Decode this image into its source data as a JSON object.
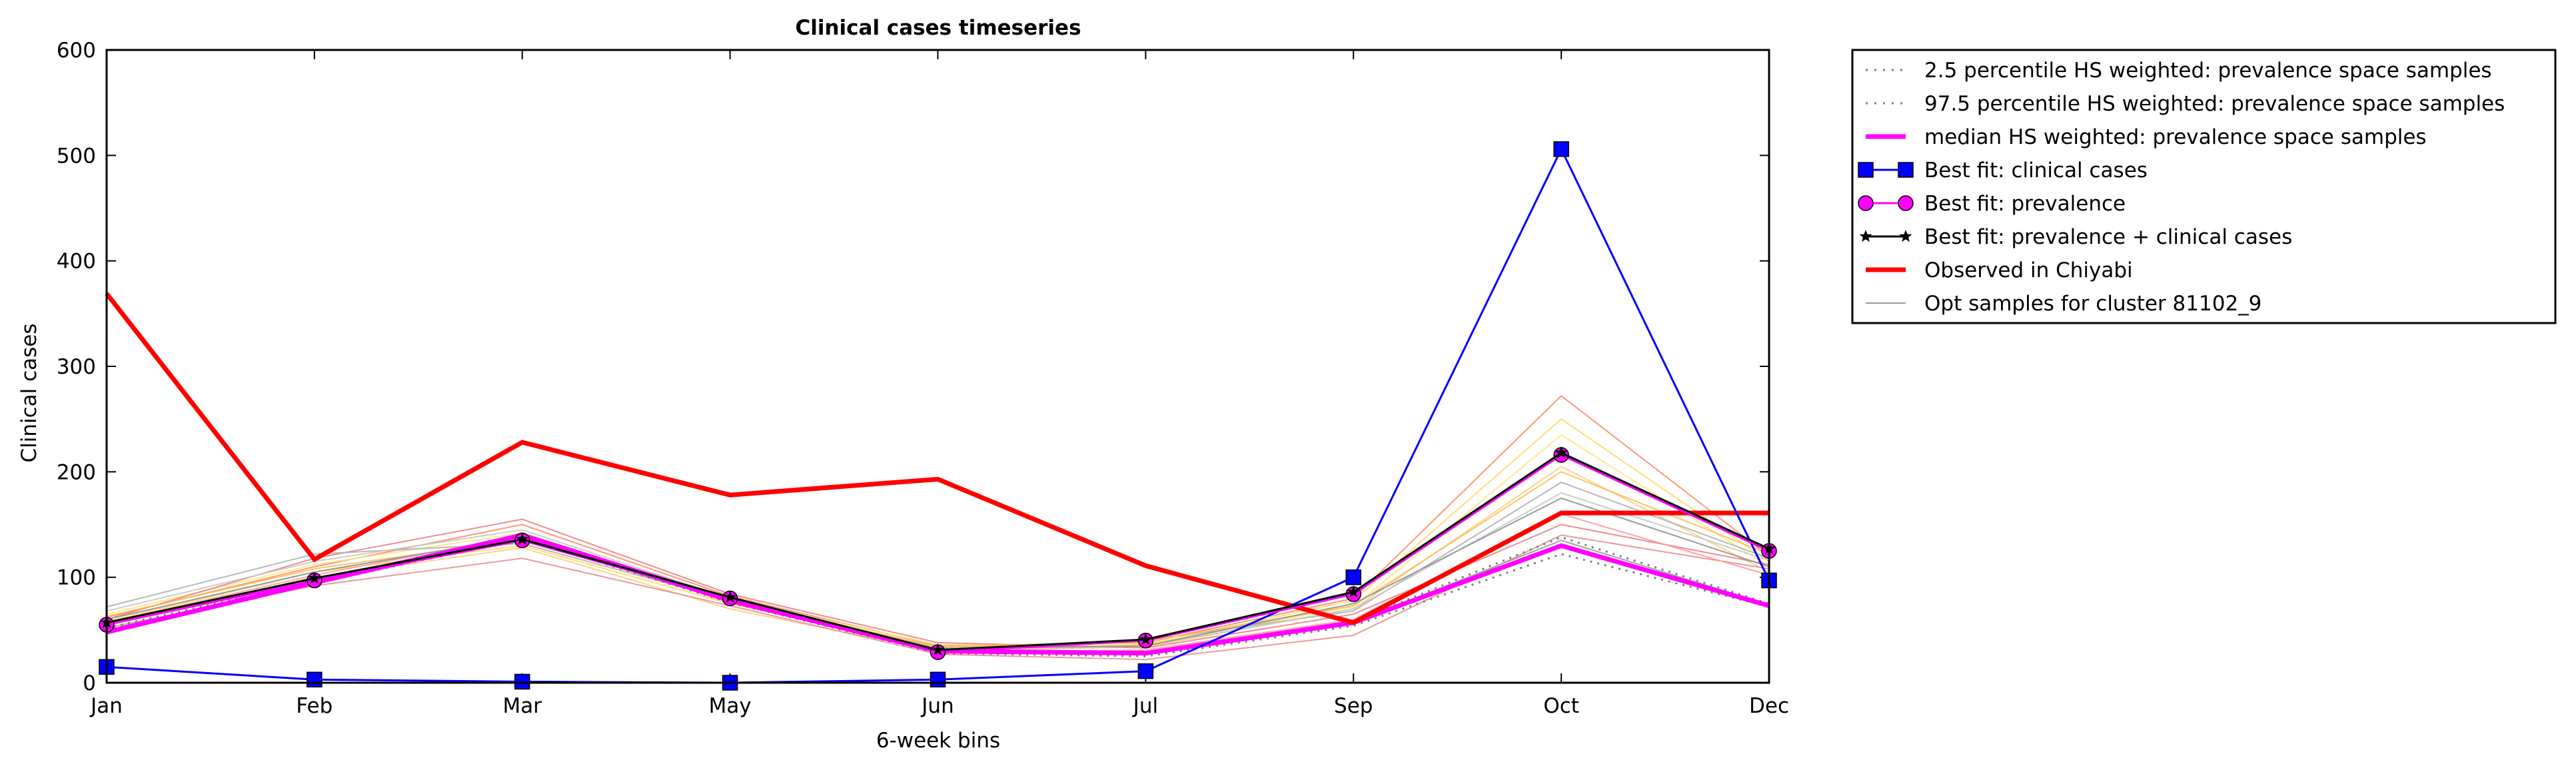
{
  "chart_data": {
    "type": "line",
    "title": "Clinical cases timeseries",
    "xlabel": "6-week bins",
    "ylabel": "Clinical cases",
    "categories": [
      "Jan",
      "Feb",
      "Mar",
      "May",
      "Jun",
      "Jul",
      "Sep",
      "Oct",
      "Dec"
    ],
    "ylim": [
      0,
      600
    ],
    "yticks": [
      "0",
      "100",
      "200",
      "300",
      "400",
      "500",
      "600"
    ],
    "grid": false,
    "legend_position": "outside-top-right",
    "colors": {
      "best_clinical": "#0000ff",
      "best_prevalence": "#ff00ff",
      "best_both": "#000000",
      "observed": "#ff0000",
      "percentile": "#808080",
      "median": "#ff00ff",
      "opt_sample": "#999999"
    },
    "series": [
      {
        "key": "p25",
        "name": "2.5 percentile HS weighted: prevalence space samples",
        "values": [
          50,
          94,
          137,
          76,
          28,
          25,
          54,
          122,
          72
        ]
      },
      {
        "key": "p975",
        "name": "97.5 percentile HS weighted: prevalence space samples",
        "values": [
          52,
          96,
          140,
          78,
          30,
          28,
          58,
          138,
          75
        ]
      },
      {
        "key": "median",
        "name": "median HS weighted: prevalence space samples",
        "values": [
          48,
          95,
          140,
          78,
          30,
          28,
          57,
          130,
          73
        ]
      },
      {
        "key": "best_clinical",
        "name": "Best fit: clinical cases",
        "values": [
          15,
          3,
          1,
          0,
          3,
          11,
          100,
          506,
          97
        ]
      },
      {
        "key": "best_prevalence",
        "name": "Best fit: prevalence",
        "values": [
          55,
          97,
          135,
          80,
          29,
          40,
          84,
          216,
          125
        ]
      },
      {
        "key": "best_both",
        "name": "Best fit: prevalence + clinical cases",
        "values": [
          57,
          99,
          136,
          81,
          31,
          41,
          86,
          218,
          127
        ]
      },
      {
        "key": "observed",
        "name": "Observed in Chiyabi",
        "values": [
          369,
          117,
          228,
          178,
          193,
          111,
          57,
          161,
          161
        ]
      },
      {
        "key": "opt",
        "name": "Opt samples for cluster 81102_9",
        "values": [
          60,
          105,
          138,
          80,
          32,
          35,
          75,
          175,
          110
        ]
      }
    ],
    "sample_lines": [
      {
        "color": "#ff8c66",
        "values": [
          62,
          110,
          150,
          82,
          35,
          38,
          80,
          272,
          120
        ]
      },
      {
        "color": "#ffd966",
        "values": [
          58,
          105,
          130,
          75,
          32,
          36,
          78,
          250,
          115
        ]
      },
      {
        "color": "#ffe680",
        "values": [
          65,
          112,
          142,
          79,
          36,
          37,
          72,
          235,
          110
        ]
      },
      {
        "color": "#ffcc80",
        "values": [
          55,
          100,
          128,
          70,
          30,
          34,
          70,
          205,
          105
        ]
      },
      {
        "color": "#f08080",
        "values": [
          60,
          118,
          155,
          84,
          38,
          33,
          65,
          150,
          112
        ]
      },
      {
        "color": "#e89090",
        "values": [
          52,
          92,
          118,
          73,
          27,
          22,
          45,
          140,
          108
        ]
      },
      {
        "color": "#b0b0b0",
        "values": [
          72,
          122,
          132,
          78,
          33,
          40,
          68,
          190,
          118
        ]
      },
      {
        "color": "#c8c8c8",
        "values": [
          68,
          115,
          145,
          80,
          31,
          35,
          70,
          180,
          116
        ]
      },
      {
        "color": "#ffbb55",
        "values": [
          63,
          108,
          136,
          78,
          34,
          39,
          73,
          200,
          122
        ]
      },
      {
        "color": "#ff9999",
        "values": [
          57,
          102,
          140,
          76,
          29,
          31,
          60,
          160,
          102
        ]
      },
      {
        "color": "#999999",
        "values": [
          50,
          96,
          137,
          77,
          29,
          27,
          57,
          135,
          74
        ]
      }
    ]
  }
}
